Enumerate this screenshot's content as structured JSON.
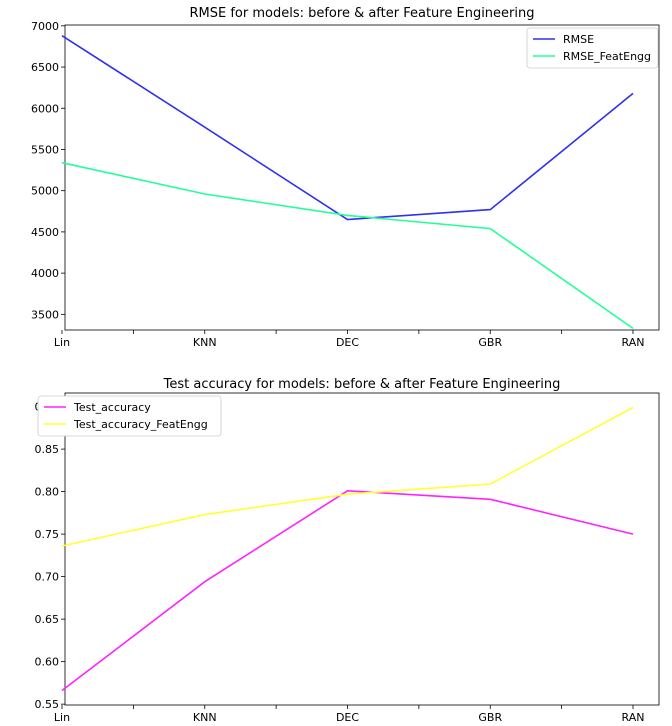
{
  "chart_data": [
    {
      "type": "line",
      "title": "RMSE for models: before & after Feature Engineering",
      "xlabel": "",
      "ylabel": "",
      "categories": [
        "Lin",
        "KNN",
        "DEC",
        "GBR",
        "RAN"
      ],
      "series": [
        {
          "name": "RMSE",
          "color": "#3030ee",
          "values": [
            6880,
            5770,
            4650,
            4770,
            6180
          ]
        },
        {
          "name": "RMSE_FeatEngg",
          "color": "#22ff99",
          "values": [
            5340,
            4960,
            4700,
            4540,
            3330
          ]
        }
      ],
      "ylim": [
        3310,
        7010
      ],
      "yticks": [
        3500,
        4000,
        4500,
        5000,
        5500,
        6000,
        6500,
        7000
      ],
      "ytick_labels": [
        "3500",
        "4000",
        "4500",
        "5000",
        "5500",
        "6000",
        "6500",
        "7000"
      ],
      "grid": false,
      "legend": "upper-right"
    },
    {
      "type": "line",
      "title": "Test accuracy for models: before & after Feature Engineering",
      "xlabel": "",
      "ylabel": "",
      "categories": [
        "Lin",
        "KNN",
        "DEC",
        "GBR",
        "RAN"
      ],
      "series": [
        {
          "name": "Test_accuracy",
          "color": "#ff22ff",
          "values": [
            0.566,
            0.694,
            0.801,
            0.791,
            0.75
          ]
        },
        {
          "name": "Test_accuracy_FeatEngg",
          "color": "#ffff33",
          "values": [
            0.736,
            0.773,
            0.797,
            0.809,
            0.899
          ]
        }
      ],
      "ylim": [
        0.549,
        0.916
      ],
      "yticks": [
        0.55,
        0.6,
        0.65,
        0.7,
        0.75,
        0.8,
        0.85,
        0.9
      ],
      "ytick_labels": [
        "0.55",
        "0.60",
        "0.65",
        "0.70",
        "0.75",
        "0.80",
        "0.85",
        "0.90"
      ],
      "grid": false,
      "legend": "upper-left"
    }
  ]
}
